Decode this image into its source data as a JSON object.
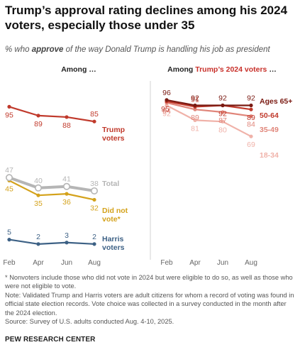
{
  "title": "Trump’s approval rating declines among his 2024 voters, especially those under 35",
  "subtitle": {
    "prefix": "% who ",
    "emph": "approve",
    "suffix": " of the way Donald Trump is handling his job as president"
  },
  "panels": {
    "left_header": "Among …",
    "right_header_prefix": "Among ",
    "right_header_highlight": "Trump’s 2024 voters",
    "right_header_suffix": " …"
  },
  "colors": {
    "trump_voters": "#c0392b",
    "total": "#b5b5b5",
    "did_not_vote": "#d4a21b",
    "harris_voters": "#3d6185",
    "age65": "#7a1a12",
    "age50": "#c0392b",
    "age35": "#e0857a",
    "age18": "#f0b2a9",
    "highlight": "#c8302a"
  },
  "chart_data": [
    {
      "type": "line",
      "panel": "Among …",
      "x": [
        "Feb",
        "Apr",
        "Jun",
        "Aug"
      ],
      "ylim": [
        0,
        100
      ],
      "series": [
        {
          "name": "Trump voters",
          "label_lines": [
            "Trump",
            "voters"
          ],
          "color_key": "trump_voters",
          "values": [
            95,
            89,
            88,
            85
          ],
          "value_labels": [
            "95",
            "89",
            "88",
            "85"
          ]
        },
        {
          "name": "Total",
          "label_lines": [
            "Total"
          ],
          "color_key": "total",
          "values": [
            47,
            40,
            41,
            38
          ],
          "value_labels": [
            "47",
            "40",
            "41",
            "38"
          ]
        },
        {
          "name": "Did not vote*",
          "label_lines": [
            "Did not",
            "vote*"
          ],
          "color_key": "did_not_vote",
          "values": [
            45,
            35,
            36,
            32
          ],
          "value_labels": [
            "45",
            "35",
            "36",
            "32"
          ]
        },
        {
          "name": "Harris voters",
          "label_lines": [
            "Harris",
            "voters"
          ],
          "color_key": "harris_voters",
          "values": [
            5,
            2,
            3,
            2
          ],
          "value_labels": [
            "5",
            "2",
            "3",
            "2"
          ]
        }
      ]
    },
    {
      "type": "line",
      "panel": "Among Trump’s 2024 voters …",
      "x": [
        "Feb",
        "Apr",
        "Jun",
        "Aug"
      ],
      "ylim": [
        50,
        100
      ],
      "series": [
        {
          "name": "Ages 65+",
          "label_lines": [
            "Ages 65+"
          ],
          "color_key": "age65",
          "values": [
            96,
            92,
            92,
            92
          ],
          "value_labels": [
            "96",
            "92",
            "92",
            "92"
          ]
        },
        {
          "name": "50-64",
          "label_lines": [
            "50-64"
          ],
          "color_key": "age50",
          "values": [
            95,
            91,
            92,
            89
          ],
          "value_labels": [
            "95",
            "91",
            "92",
            "89"
          ]
        },
        {
          "name": "35-49",
          "label_lines": [
            "35-49"
          ],
          "color_key": "age35",
          "values": [
            94,
            89,
            87,
            84
          ],
          "value_labels": [
            "94",
            "89",
            "87",
            "84"
          ]
        },
        {
          "name": "18-34",
          "label_lines": [
            "18-34"
          ],
          "color_key": "age18",
          "values": [
            92,
            81,
            80,
            69
          ],
          "value_labels": [
            "92",
            "81",
            "80",
            "69"
          ]
        }
      ]
    }
  ],
  "notes": {
    "note1": "* Nonvoters include those who did not vote in 2024 but were eligible to do so, as well as those who were not eligible to vote.",
    "note2": "Note: Validated Trump and Harris voters are adult citizens for whom a record of voting was found in official state election records. Vote choice was collected in a survey conducted in the month after the 2024 election.",
    "source": "Source: Survey of U.S. adults conducted Aug. 4-10, 2025."
  },
  "org": "PEW RESEARCH CENTER"
}
